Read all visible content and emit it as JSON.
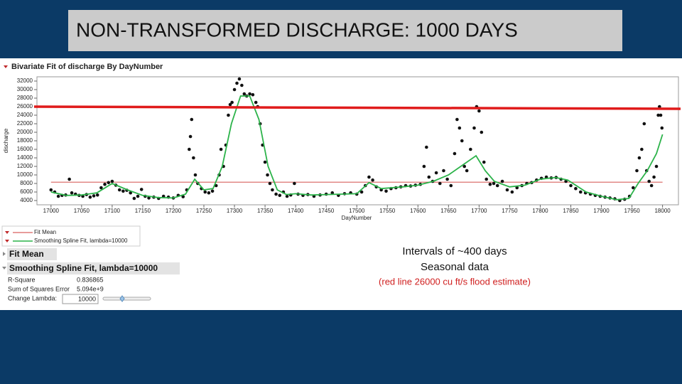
{
  "slide": {
    "title": "NON-TRANSFORMED DISCHARGE: 1000 DAYS",
    "notes": [
      "Intervals of ~400 days",
      "Seasonal data",
      "(red line 26000 cu ft/s  flood estimate)"
    ]
  },
  "chart_data": {
    "type": "scatter",
    "title": "Bivariate Fit of discharge By DayNumber",
    "x_label": "DayNumber",
    "y_label": "discharge",
    "x": [
      17000,
      17006,
      17012,
      17018,
      17024,
      17030,
      17034,
      17040,
      17046,
      17052,
      17058,
      17064,
      17070,
      17076,
      17082,
      17088,
      17094,
      17100,
      17106,
      17112,
      17118,
      17124,
      17130,
      17136,
      17142,
      17148,
      17154,
      17160,
      17168,
      17176,
      17184,
      17192,
      17200,
      17208,
      17216,
      17222,
      17226,
      17228,
      17230,
      17233,
      17236,
      17240,
      17246,
      17252,
      17258,
      17264,
      17270,
      17275,
      17278,
      17282,
      17286,
      17290,
      17293,
      17296,
      17300,
      17304,
      17308,
      17312,
      17316,
      17320,
      17325,
      17330,
      17335,
      17338,
      17342,
      17346,
      17350,
      17354,
      17358,
      17362,
      17368,
      17374,
      17380,
      17386,
      17392,
      17398,
      17404,
      17412,
      17420,
      17430,
      17440,
      17450,
      17460,
      17470,
      17480,
      17490,
      17500,
      17508,
      17514,
      17520,
      17526,
      17532,
      17540,
      17548,
      17556,
      17564,
      17572,
      17580,
      17588,
      17596,
      17604,
      17610,
      17614,
      17618,
      17624,
      17630,
      17636,
      17642,
      17648,
      17654,
      17660,
      17664,
      17668,
      17672,
      17676,
      17680,
      17686,
      17692,
      17696,
      17700,
      17704,
      17708,
      17712,
      17718,
      17724,
      17730,
      17738,
      17746,
      17754,
      17762,
      17770,
      17778,
      17786,
      17794,
      17802,
      17810,
      17818,
      17826,
      17834,
      17842,
      17850,
      17858,
      17866,
      17874,
      17882,
      17890,
      17898,
      17906,
      17914,
      17922,
      17930,
      17938,
      17946,
      17952,
      17958,
      17962,
      17966,
      17970,
      17974,
      17978,
      17982,
      17986,
      17990,
      17993,
      17995,
      17997,
      17999
    ],
    "values": [
      6500,
      6000,
      5000,
      5200,
      5300,
      9000,
      5800,
      5500,
      5200,
      5000,
      5400,
      4800,
      5100,
      5300,
      7000,
      7800,
      8200,
      8500,
      7600,
      6500,
      6200,
      6400,
      5800,
      4500,
      5000,
      6600,
      5000,
      4600,
      4800,
      4500,
      5000,
      4800,
      4600,
      5200,
      4900,
      6500,
      16000,
      19000,
      23000,
      14000,
      10000,
      8000,
      6800,
      6000,
      5800,
      6200,
      7500,
      10000,
      16000,
      12000,
      17000,
      24000,
      26500,
      27000,
      30000,
      31500,
      32500,
      31000,
      29000,
      28500,
      29000,
      28800,
      27000,
      26000,
      22000,
      17000,
      13000,
      10000,
      8000,
      6500,
      5500,
      5200,
      6000,
      5000,
      5300,
      8000,
      5500,
      5200,
      5400,
      5000,
      5300,
      5500,
      5800,
      5200,
      5600,
      5800,
      5500,
      6000,
      7500,
      9500,
      8800,
      7200,
      6500,
      6200,
      6800,
      7000,
      7200,
      7500,
      7400,
      7600,
      7800,
      12000,
      16500,
      9500,
      8500,
      10500,
      8000,
      11000,
      9000,
      7500,
      15000,
      23000,
      21000,
      18000,
      12000,
      11000,
      16000,
      21000,
      26000,
      25000,
      20000,
      13000,
      9000,
      7800,
      8000,
      7500,
      8500,
      6500,
      6000,
      7000,
      7500,
      8000,
      8200,
      8800,
      9200,
      9500,
      9300,
      9400,
      9000,
      8500,
      7500,
      6800,
      6000,
      5800,
      5500,
      5200,
      5000,
      4800,
      4600,
      4400,
      4000,
      4300,
      5000,
      7000,
      11000,
      14000,
      16000,
      22000,
      11000,
      8500,
      7500,
      9500,
      12000,
      24000,
      26000,
      24000,
      21000
    ],
    "color": "#111111",
    "xlim": [
      16977,
      18026
    ],
    "ylim": [
      3000,
      33000
    ],
    "xticks": [
      17000,
      17050,
      17100,
      17150,
      17200,
      17250,
      17300,
      17350,
      17400,
      17450,
      17500,
      17550,
      17600,
      17650,
      17700,
      17750,
      17800,
      17850,
      17900,
      17950,
      18000
    ],
    "yticks": [
      4000,
      6000,
      8000,
      10000,
      12000,
      14000,
      16000,
      18000,
      20000,
      22000,
      24000,
      26000,
      28000,
      30000,
      32000
    ],
    "fit_mean": {
      "name": "Fit Mean",
      "value": 8300,
      "color": "#d9605f"
    },
    "spline": {
      "name": "Smoothing Spline Fit, lambda=10000",
      "color": "#2cb34a",
      "x": [
        17000,
        17025,
        17050,
        17075,
        17100,
        17125,
        17150,
        17175,
        17200,
        17220,
        17235,
        17250,
        17265,
        17280,
        17295,
        17310,
        17325,
        17340,
        17355,
        17370,
        17385,
        17400,
        17425,
        17450,
        17475,
        17500,
        17520,
        17540,
        17575,
        17600,
        17625,
        17650,
        17675,
        17695,
        17710,
        17725,
        17750,
        17775,
        17800,
        17825,
        17845,
        17875,
        17900,
        17925,
        17945,
        17960,
        17975,
        17990,
        18000
      ],
      "values": [
        6000,
        5200,
        5300,
        5800,
        8000,
        6500,
        5200,
        4700,
        4600,
        5500,
        9000,
        6500,
        6800,
        12000,
        22000,
        28500,
        28500,
        23000,
        12000,
        6500,
        5400,
        5600,
        5300,
        5400,
        5500,
        5600,
        8200,
        6800,
        7200,
        7600,
        8500,
        10000,
        12500,
        14500,
        11000,
        8500,
        7200,
        7600,
        9000,
        9400,
        8800,
        6000,
        5000,
        4200,
        4500,
        8000,
        11000,
        15000,
        19500
      ]
    },
    "reference_line": {
      "value": 26000,
      "color": "#e01b1b"
    }
  },
  "report": {
    "sections": [
      {
        "title": "Fit Mean"
      },
      {
        "title": "Smoothing Spline Fit, lambda=10000",
        "rows": [
          [
            "R-Square",
            "0.836865"
          ],
          [
            "Sum of Squares Error",
            "5.094e+9"
          ],
          [
            "Change Lambda:",
            "10000"
          ]
        ]
      }
    ]
  }
}
